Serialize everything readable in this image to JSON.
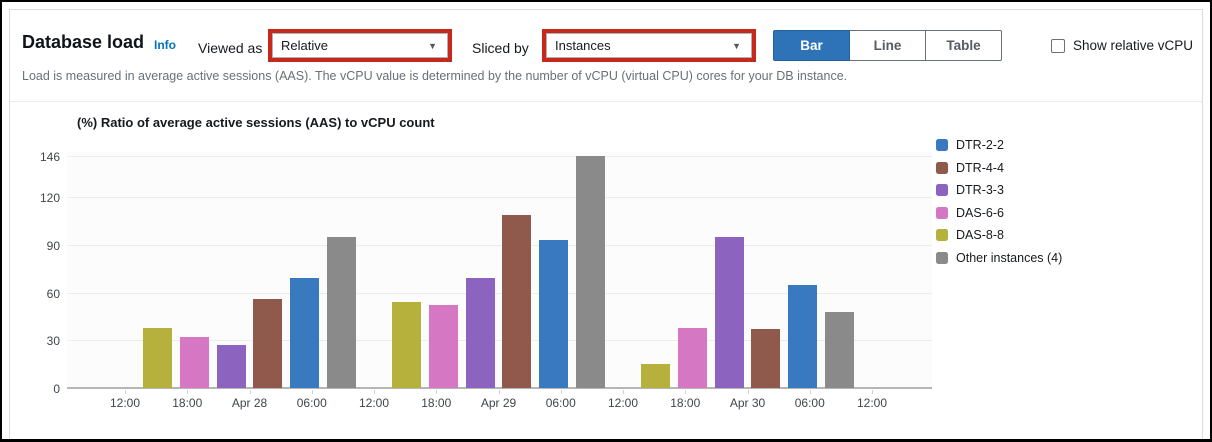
{
  "header": {
    "title": "Database load",
    "info_label": "Info",
    "viewed_as_label": "Viewed as",
    "viewed_as_value": "Relative",
    "sliced_by_label": "Sliced by",
    "sliced_by_value": "Instances",
    "view_toggle": {
      "options": [
        "Bar",
        "Line",
        "Table"
      ],
      "selected": "Bar"
    },
    "show_relative_vcpu_label": "Show relative vCPU",
    "show_relative_vcpu_checked": false,
    "description": "Load is measured in average active sessions (AAS). The vCPU value is determined by the number of vCPU (virtual CPU) cores for your DB instance.",
    "colors": {
      "link": "#0073bb",
      "toggle_selected": "#2e73b8",
      "annotation": "#c8281c"
    }
  },
  "icons": {
    "dropdown_caret": "▼"
  },
  "chart_data": {
    "type": "bar",
    "title": "(%) Ratio of average active sessions (AAS) to vCPU count",
    "xlabel": "",
    "ylabel": "",
    "x_labels": [
      "12:00",
      "18:00",
      "Apr 28",
      "06:00",
      "12:00",
      "18:00",
      "Apr 29",
      "06:00",
      "12:00",
      "18:00",
      "Apr 30",
      "06:00",
      "12:00"
    ],
    "y_ticks": [
      0,
      30,
      60,
      90,
      120,
      146
    ],
    "ylim": [
      0,
      146
    ],
    "grid": true,
    "legend_position": "right",
    "group_labels": [
      "Apr 28",
      "Apr 29",
      "Apr 30"
    ],
    "group_center_tick_indices": [
      2,
      6,
      10
    ],
    "bar_order": [
      "DAS-8-8",
      "DAS-6-6",
      "DTR-3-3",
      "DTR-4-4",
      "DTR-2-2",
      "Other instances (4)"
    ],
    "series": [
      {
        "name": "DTR-2-2",
        "color": "#3879bf",
        "values": [
          69,
          93,
          65
        ]
      },
      {
        "name": "DTR-4-4",
        "color": "#8f5a4b",
        "values": [
          56,
          109,
          37
        ]
      },
      {
        "name": "DTR-3-3",
        "color": "#8c64c0",
        "values": [
          27,
          69,
          95
        ]
      },
      {
        "name": "DAS-6-6",
        "color": "#d677c4",
        "values": [
          32,
          52,
          38
        ]
      },
      {
        "name": "DAS-8-8",
        "color": "#b6b03c",
        "values": [
          38,
          54,
          15
        ]
      },
      {
        "name": "Other instances (4)",
        "color": "#8a8a8a",
        "values": [
          95,
          146,
          48
        ]
      }
    ],
    "colors": {
      "gridline": "#ececec",
      "baseline": "#b6b6b6",
      "plot_bg": "#fcfcfc"
    }
  }
}
